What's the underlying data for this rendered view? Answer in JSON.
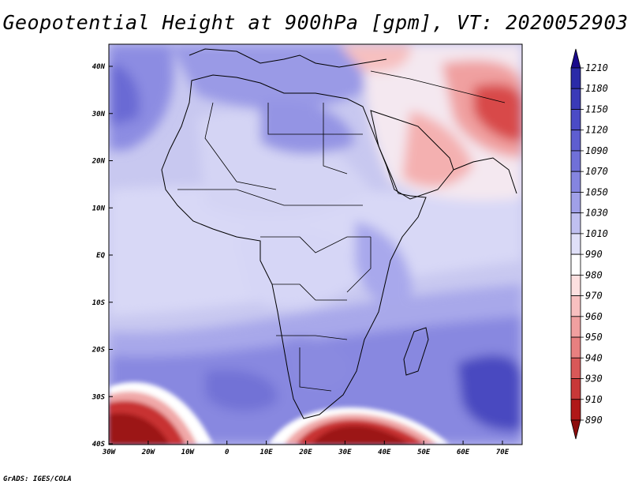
{
  "title": "Geopotential Height at 900hPa [gpm], VT: 2020052903",
  "credit": "GrADS: IGES/COLA",
  "map": {
    "lat_labels": [
      "40N",
      "30N",
      "20N",
      "10N",
      "EQ",
      "10S",
      "20S",
      "30S",
      "40S"
    ],
    "lon_labels": [
      "30W",
      "20W",
      "10W",
      "0",
      "10E",
      "20E",
      "30E",
      "40E",
      "50E",
      "60E",
      "70E"
    ],
    "lon_range": [
      -30,
      75
    ],
    "lat_range": [
      -40,
      45
    ]
  },
  "colorbar": {
    "levels": [
      "1210",
      "1180",
      "1150",
      "1120",
      "1090",
      "1070",
      "1050",
      "1030",
      "1010",
      "990",
      "980",
      "970",
      "960",
      "950",
      "940",
      "930",
      "910",
      "890"
    ],
    "colors": [
      "#1a0a8c",
      "#2a2aa8",
      "#3a3ab8",
      "#4b4bc6",
      "#5e5ed0",
      "#7070d8",
      "#8585e0",
      "#a0a0e8",
      "#c0c0f0",
      "#e0e0f8",
      "#ffffff",
      "#fde0e0",
      "#f8c0c0",
      "#f0a0a0",
      "#e88080",
      "#d85858",
      "#c83838",
      "#b01818",
      "#8c0c0c"
    ]
  }
}
